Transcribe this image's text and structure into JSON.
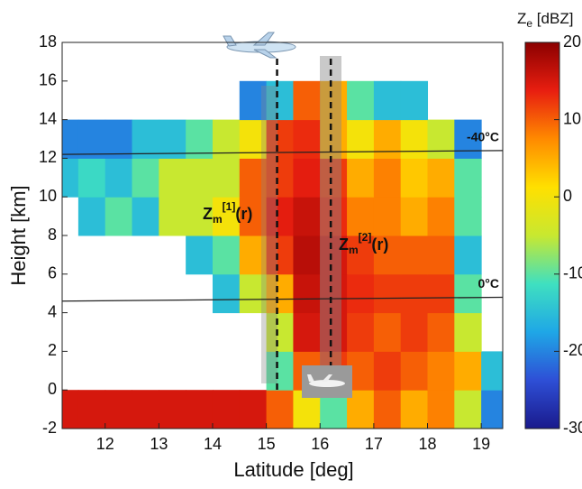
{
  "chart_data": {
    "type": "heatmap",
    "xlabel": "Latitude [deg]",
    "ylabel": "Height [km]",
    "xlim": [
      11.2,
      19.4
    ],
    "xticks": [
      12,
      13,
      14,
      15,
      16,
      17,
      18,
      19
    ],
    "ylim": [
      -2,
      18
    ],
    "yticks": [
      -2,
      0,
      2,
      4,
      6,
      8,
      10,
      12,
      14,
      16,
      18
    ],
    "xbins": [
      11.2,
      11.5,
      12,
      12.5,
      13,
      13.5,
      14,
      14.5,
      15,
      15.5,
      16,
      16.5,
      17,
      17.5,
      18,
      18.5,
      19,
      19.4
    ],
    "ybins": [
      -2,
      0,
      2,
      4,
      6,
      8,
      10,
      12,
      14,
      16,
      18
    ],
    "values": [
      [
        15,
        15,
        15,
        15,
        15,
        15,
        15,
        15,
        10,
        0,
        -10,
        5,
        10,
        5,
        8,
        -5,
        -20
      ],
      [
        null,
        null,
        null,
        null,
        null,
        null,
        null,
        null,
        -10,
        10,
        12,
        10,
        12,
        10,
        8,
        5,
        -15
      ],
      [
        null,
        null,
        null,
        null,
        null,
        null,
        null,
        null,
        -5,
        15,
        15,
        12,
        10,
        12,
        10,
        -5,
        null
      ],
      [
        null,
        null,
        null,
        null,
        null,
        null,
        -15,
        -5,
        5,
        16,
        15,
        13,
        12,
        12,
        12,
        -10,
        null
      ],
      [
        null,
        null,
        null,
        null,
        null,
        -15,
        -10,
        5,
        12,
        17,
        15,
        12,
        10,
        10,
        10,
        -15,
        null
      ],
      [
        null,
        -15,
        -10,
        -15,
        -5,
        -5,
        0,
        10,
        14,
        16,
        13,
        8,
        8,
        5,
        8,
        -10,
        null
      ],
      [
        -15,
        -12,
        -15,
        -10,
        -5,
        -5,
        -5,
        10,
        12,
        14,
        12,
        5,
        8,
        3,
        5,
        -10,
        null
      ],
      [
        -20,
        -20,
        -20,
        -15,
        -15,
        -10,
        -5,
        0,
        12,
        13,
        5,
        0,
        5,
        0,
        -5,
        -20,
        null
      ],
      [
        null,
        null,
        null,
        null,
        null,
        null,
        null,
        -20,
        -15,
        10,
        5,
        -10,
        -15,
        -15,
        null,
        null,
        null
      ],
      [
        null,
        null,
        null,
        null,
        null,
        null,
        null,
        null,
        null,
        null,
        null,
        null,
        null,
        null,
        null,
        null,
        null
      ]
    ],
    "colormap": [
      "#1a1a8c",
      "#2e4fd6",
      "#1fa7e6",
      "#3fe0c0",
      "#c8e830",
      "#ffe000",
      "#ff8a00",
      "#e81e10",
      "#8b0000"
    ],
    "clim": [
      -30,
      20
    ],
    "cticks": [
      -30,
      -20,
      -10,
      0,
      10,
      20
    ],
    "colorbar_label": {
      "main": "Z",
      "sub": "e",
      "rest": " [dBZ]"
    },
    "isotherms": [
      {
        "label": "-40°C",
        "y": [
          12.2,
          12.4
        ]
      },
      {
        "label": "0°C",
        "y": [
          4.6,
          4.8
        ]
      }
    ],
    "flight_tracks": [
      15.2,
      16.2
    ],
    "annotations": [
      {
        "main": "Z",
        "sub": "m",
        "sup": "[1]",
        "rest": "(r)"
      },
      {
        "main": "Z",
        "sub": "m",
        "sup": "[2]",
        "rest": "(r)"
      }
    ]
  }
}
